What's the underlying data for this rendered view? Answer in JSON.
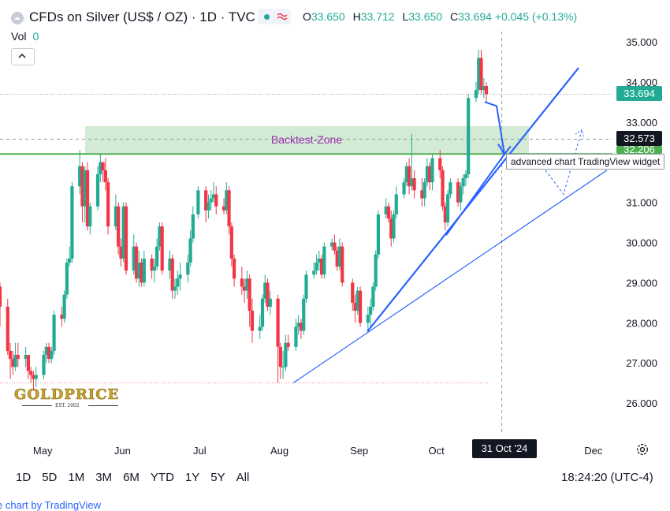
{
  "header": {
    "title": "CFDs on Silver (US$ / OZ) · 1D · TVC",
    "status_icon": "market-open-dot",
    "ohlc": {
      "o_label": "O",
      "o": "33.650",
      "h_label": "H",
      "h": "33.712",
      "l_label": "L",
      "l": "33.650",
      "c_label": "C",
      "c": "33.694",
      "change": "+0.045 (+0.13%)"
    },
    "vol_label": "Vol",
    "vol_value": "0"
  },
  "colors": {
    "up": "#22ab94",
    "down": "#f23645",
    "zone": "#c8e6c9",
    "trend": "#2962ff",
    "support": "#4caf50",
    "text": "#131722"
  },
  "chart_data": {
    "type": "candlestick",
    "y_axis": {
      "ticks": [
        "35.000",
        "34.000",
        "33.000",
        "32.000",
        "31.000",
        "30.000",
        "29.000",
        "28.000",
        "27.000",
        "26.000"
      ],
      "ylim": [
        25.3,
        35.35
      ]
    },
    "x_axis": {
      "ticks": [
        "May",
        "Jun",
        "Jul",
        "Aug",
        "Sep",
        "Oct",
        "Dec"
      ],
      "ylabel": ""
    },
    "x_tick_dates": [
      "2024-05-01",
      "2024-06-01",
      "2024-07-01",
      "2024-08-01",
      "2024-09-01",
      "2024-10-01",
      "2024-12-01"
    ],
    "xlim": [
      "2024-04-19",
      "2024-12-13"
    ],
    "candles": [
      [
        "2024-04-19",
        28.9,
        29.0,
        27.9,
        28.4
      ],
      [
        "2024-04-22",
        28.4,
        28.6,
        27.2,
        27.3
      ],
      [
        "2024-04-23",
        27.3,
        27.5,
        26.6,
        27.1
      ],
      [
        "2024-04-24",
        27.1,
        27.3,
        26.7,
        26.9
      ],
      [
        "2024-04-25",
        26.9,
        27.5,
        26.8,
        27.2
      ],
      [
        "2024-04-26",
        27.2,
        27.5,
        26.9,
        27.1
      ],
      [
        "2024-04-29",
        27.1,
        27.4,
        26.9,
        27.2
      ],
      [
        "2024-04-30",
        27.2,
        27.2,
        26.6,
        26.8
      ],
      [
        "2024-05-01",
        26.8,
        26.9,
        26.5,
        26.7
      ],
      [
        "2024-05-02",
        26.7,
        26.8,
        26.3,
        26.6
      ],
      [
        "2024-05-03",
        26.6,
        26.9,
        26.4,
        26.7
      ],
      [
        "2024-05-06",
        26.7,
        27.3,
        26.6,
        27.2
      ],
      [
        "2024-05-07",
        27.2,
        27.5,
        27.0,
        27.4
      ],
      [
        "2024-05-08",
        27.4,
        27.5,
        27.0,
        27.1
      ],
      [
        "2024-05-09",
        27.1,
        27.4,
        27.0,
        27.3
      ],
      [
        "2024-05-10",
        27.3,
        28.3,
        27.2,
        28.2
      ],
      [
        "2024-05-13",
        28.2,
        28.4,
        27.9,
        28.1
      ],
      [
        "2024-05-14",
        28.1,
        28.8,
        28.0,
        28.7
      ],
      [
        "2024-05-15",
        28.7,
        29.6,
        28.6,
        29.5
      ],
      [
        "2024-05-16",
        29.5,
        29.9,
        29.4,
        29.6
      ],
      [
        "2024-05-17",
        29.6,
        31.5,
        29.5,
        31.4
      ],
      [
        "2024-05-20",
        31.4,
        32.3,
        31.2,
        31.9
      ],
      [
        "2024-05-21",
        31.9,
        32.0,
        30.5,
        30.9
      ],
      [
        "2024-05-22",
        30.9,
        31.9,
        30.5,
        31.8
      ],
      [
        "2024-05-23",
        31.8,
        32.0,
        30.3,
        30.4
      ],
      [
        "2024-05-24",
        30.4,
        31.0,
        30.2,
        30.9
      ],
      [
        "2024-05-27",
        30.9,
        31.9,
        30.8,
        31.7
      ],
      [
        "2024-05-28",
        31.7,
        32.2,
        31.5,
        32.0
      ],
      [
        "2024-05-29",
        32.0,
        32.0,
        31.5,
        31.8
      ],
      [
        "2024-05-30",
        31.8,
        32.1,
        31.3,
        31.5
      ],
      [
        "2024-05-31",
        31.5,
        31.6,
        30.2,
        30.4
      ],
      [
        "2024-06-03",
        30.4,
        31.2,
        30.3,
        30.9
      ],
      [
        "2024-06-04",
        30.9,
        31.0,
        29.7,
        29.9
      ],
      [
        "2024-06-05",
        29.9,
        30.1,
        29.4,
        29.6
      ],
      [
        "2024-06-06",
        29.6,
        31.0,
        29.5,
        30.9
      ],
      [
        "2024-06-07",
        30.9,
        31.0,
        29.2,
        29.3
      ],
      [
        "2024-06-10",
        29.3,
        30.2,
        29.2,
        29.9
      ],
      [
        "2024-06-11",
        29.9,
        30.0,
        29.0,
        29.1
      ],
      [
        "2024-06-12",
        29.1,
        29.8,
        28.9,
        29.5
      ],
      [
        "2024-06-13",
        29.5,
        29.6,
        28.9,
        29.0
      ],
      [
        "2024-06-14",
        29.0,
        29.8,
        28.9,
        29.6
      ],
      [
        "2024-06-17",
        29.6,
        29.7,
        29.1,
        29.3
      ],
      [
        "2024-06-18",
        29.3,
        29.6,
        29.0,
        29.4
      ],
      [
        "2024-06-19",
        29.4,
        30.1,
        29.3,
        29.9
      ],
      [
        "2024-06-20",
        29.9,
        30.5,
        29.8,
        30.4
      ],
      [
        "2024-06-21",
        30.4,
        30.5,
        29.2,
        29.3
      ],
      [
        "2024-06-24",
        29.3,
        29.8,
        29.1,
        29.6
      ],
      [
        "2024-06-25",
        29.6,
        29.7,
        28.6,
        28.8
      ],
      [
        "2024-06-26",
        28.8,
        29.1,
        28.6,
        28.9
      ],
      [
        "2024-06-27",
        28.9,
        29.3,
        28.7,
        29.1
      ],
      [
        "2024-06-28",
        29.1,
        29.5,
        28.8,
        29.2
      ],
      [
        "2024-07-01",
        29.2,
        29.7,
        29.0,
        29.5
      ],
      [
        "2024-07-02",
        29.5,
        30.3,
        29.4,
        30.1
      ],
      [
        "2024-07-03",
        30.1,
        30.9,
        30.0,
        30.7
      ],
      [
        "2024-07-05",
        30.7,
        31.4,
        30.6,
        31.3
      ],
      [
        "2024-07-08",
        31.3,
        31.4,
        30.5,
        30.8
      ],
      [
        "2024-07-09",
        30.8,
        31.2,
        30.6,
        31.0
      ],
      [
        "2024-07-10",
        31.0,
        31.3,
        30.8,
        31.1
      ],
      [
        "2024-07-11",
        31.1,
        31.5,
        31.0,
        31.2
      ],
      [
        "2024-07-12",
        31.2,
        31.4,
        30.7,
        30.9
      ],
      [
        "2024-07-15",
        30.9,
        31.1,
        30.7,
        30.8
      ],
      [
        "2024-07-16",
        30.8,
        31.5,
        30.7,
        31.3
      ],
      [
        "2024-07-17",
        31.3,
        31.4,
        30.2,
        30.4
      ],
      [
        "2024-07-18",
        30.4,
        30.5,
        29.4,
        29.6
      ],
      [
        "2024-07-19",
        29.6,
        29.7,
        28.9,
        29.1
      ],
      [
        "2024-07-22",
        29.1,
        29.4,
        28.7,
        28.9
      ],
      [
        "2024-07-23",
        28.9,
        29.1,
        28.5,
        28.8
      ],
      [
        "2024-07-24",
        28.8,
        29.3,
        28.6,
        29.1
      ],
      [
        "2024-07-25",
        29.1,
        29.2,
        27.9,
        28.3
      ],
      [
        "2024-07-26",
        28.3,
        28.6,
        27.5,
        27.8
      ],
      [
        "2024-07-29",
        27.8,
        28.2,
        27.6,
        27.9
      ],
      [
        "2024-07-30",
        27.9,
        28.7,
        27.8,
        28.6
      ],
      [
        "2024-07-31",
        28.6,
        29.2,
        28.5,
        29.0
      ],
      [
        "2024-08-01",
        29.0,
        29.1,
        28.3,
        28.4
      ],
      [
        "2024-08-02",
        28.4,
        28.8,
        28.2,
        28.6
      ],
      [
        "2024-08-05",
        28.6,
        28.7,
        26.5,
        27.4
      ],
      [
        "2024-08-06",
        27.4,
        27.5,
        26.6,
        26.9
      ],
      [
        "2024-08-07",
        26.9,
        27.3,
        26.6,
        26.9
      ],
      [
        "2024-08-08",
        26.9,
        27.7,
        26.8,
        27.5
      ],
      [
        "2024-08-09",
        27.5,
        27.7,
        27.3,
        27.4
      ],
      [
        "2024-08-12",
        27.4,
        28.1,
        27.3,
        27.9
      ],
      [
        "2024-08-13",
        27.9,
        28.2,
        27.7,
        28.0
      ],
      [
        "2024-08-14",
        28.0,
        28.1,
        27.6,
        27.8
      ],
      [
        "2024-08-15",
        27.8,
        28.7,
        27.7,
        28.6
      ],
      [
        "2024-08-16",
        28.6,
        29.3,
        28.5,
        29.2
      ],
      [
        "2024-08-19",
        29.2,
        29.5,
        29.1,
        29.3
      ],
      [
        "2024-08-20",
        29.3,
        29.7,
        29.2,
        29.5
      ],
      [
        "2024-08-21",
        29.5,
        29.8,
        29.3,
        29.6
      ],
      [
        "2024-08-22",
        29.6,
        29.7,
        29.1,
        29.2
      ],
      [
        "2024-08-23",
        29.2,
        30.0,
        29.1,
        29.9
      ],
      [
        "2024-08-26",
        29.9,
        30.1,
        29.8,
        30.0
      ],
      [
        "2024-08-27",
        30.0,
        30.2,
        29.7,
        29.8
      ],
      [
        "2024-08-28",
        29.8,
        29.9,
        29.3,
        29.4
      ],
      [
        "2024-08-29",
        29.4,
        30.1,
        29.3,
        29.9
      ],
      [
        "2024-08-30",
        29.9,
        30.0,
        28.9,
        29.0
      ],
      [
        "2024-09-03",
        29.0,
        29.1,
        28.3,
        28.5
      ],
      [
        "2024-09-04",
        28.5,
        28.7,
        28.0,
        28.3
      ],
      [
        "2024-09-05",
        28.3,
        28.9,
        28.2,
        28.8
      ],
      [
        "2024-09-06",
        28.8,
        28.9,
        27.9,
        28.0
      ],
      [
        "2024-09-09",
        28.0,
        28.4,
        27.8,
        28.2
      ],
      [
        "2024-09-10",
        28.2,
        28.6,
        27.9,
        28.4
      ],
      [
        "2024-09-11",
        28.4,
        29.0,
        28.3,
        28.9
      ],
      [
        "2024-09-12",
        28.9,
        29.8,
        28.8,
        29.7
      ],
      [
        "2024-09-13",
        29.7,
        30.8,
        29.6,
        30.7
      ],
      [
        "2024-09-16",
        30.7,
        31.1,
        30.6,
        30.9
      ],
      [
        "2024-09-17",
        30.9,
        31.0,
        30.5,
        30.6
      ],
      [
        "2024-09-18",
        30.6,
        30.8,
        29.9,
        30.1
      ],
      [
        "2024-09-19",
        30.1,
        30.8,
        30.0,
        30.7
      ],
      [
        "2024-09-20",
        30.7,
        31.4,
        30.6,
        31.2
      ],
      [
        "2024-09-23",
        31.2,
        31.6,
        31.1,
        31.5
      ],
      [
        "2024-09-24",
        31.5,
        32.0,
        31.4,
        31.9
      ],
      [
        "2024-09-25",
        31.9,
        32.1,
        31.2,
        31.4
      ],
      [
        "2024-09-26",
        31.4,
        32.7,
        31.3,
        31.6
      ],
      [
        "2024-09-27",
        31.6,
        31.8,
        31.1,
        31.3
      ],
      [
        "2024-09-30",
        31.3,
        31.6,
        30.9,
        31.1
      ],
      [
        "2024-10-01",
        31.1,
        31.6,
        30.9,
        31.5
      ],
      [
        "2024-10-02",
        31.5,
        32.1,
        31.4,
        31.9
      ],
      [
        "2024-10-03",
        31.9,
        32.0,
        31.3,
        31.5
      ],
      [
        "2024-10-04",
        31.5,
        32.2,
        31.3,
        32.1
      ],
      [
        "2024-10-07",
        32.1,
        32.3,
        31.6,
        31.8
      ],
      [
        "2024-10-08",
        31.8,
        31.9,
        30.8,
        30.9
      ],
      [
        "2024-10-09",
        30.9,
        31.0,
        30.3,
        30.5
      ],
      [
        "2024-10-10",
        30.5,
        31.3,
        30.4,
        31.2
      ],
      [
        "2024-10-11",
        31.2,
        31.6,
        31.1,
        31.5
      ],
      [
        "2024-10-14",
        31.5,
        31.6,
        30.9,
        31.0
      ],
      [
        "2024-10-15",
        31.0,
        31.5,
        30.8,
        31.4
      ],
      [
        "2024-10-16",
        31.4,
        31.7,
        31.2,
        31.6
      ],
      [
        "2024-10-17",
        31.6,
        31.8,
        31.4,
        31.7
      ],
      [
        "2024-10-18",
        31.7,
        33.7,
        31.6,
        33.6
      ],
      [
        "2024-10-21",
        33.6,
        34.0,
        33.5,
        33.8
      ],
      [
        "2024-10-22",
        33.8,
        34.8,
        33.7,
        34.6
      ],
      [
        "2024-10-23",
        34.6,
        34.8,
        33.7,
        33.8
      ],
      [
        "2024-10-24",
        33.8,
        34.1,
        33.6,
        33.9
      ],
      [
        "2024-10-25",
        33.9,
        34.0,
        33.5,
        33.7
      ]
    ],
    "levels": {
      "last_price": "33.694",
      "backtest_top": "32.573",
      "backtest_bottom": "32.206",
      "swing_low": 26.5
    },
    "annotations": {
      "zone_label": "Backtest-Zone"
    },
    "crosshair_date": "31 Oct '24",
    "tooltip": "advanced chart TradingView widget"
  },
  "controls": {
    "ranges": [
      "1D",
      "5D",
      "1M",
      "3M",
      "6M",
      "YTD",
      "1Y",
      "5Y",
      "All"
    ],
    "clock": "18:24:20 (UTC-4)",
    "footer": "e chart by TradingView"
  },
  "logo": {
    "main": "GOLDPRICE",
    "sub": "EST. 2002"
  }
}
